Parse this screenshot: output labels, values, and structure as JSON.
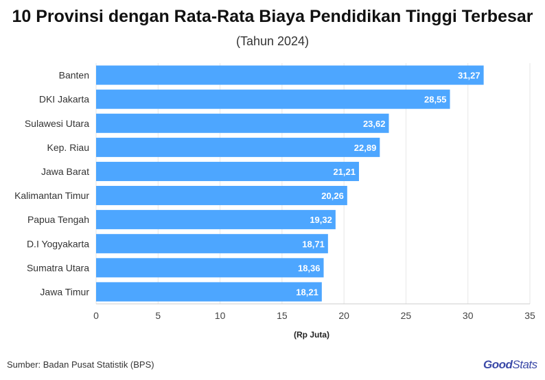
{
  "chart_data": {
    "type": "bar",
    "orientation": "horizontal",
    "title": "10 Provinsi dengan Rata-Rata Biaya Pendidikan Tinggi Terbesar",
    "subtitle": "(Tahun 2024)",
    "categories": [
      "Banten",
      "DKI Jakarta",
      "Sulawesi Utara",
      "Kep. Riau",
      "Jawa Barat",
      "Kalimantan Timur",
      "Papua Tengah",
      "D.I Yogyakarta",
      "Sumatra Utara",
      "Jawa Timur"
    ],
    "values": [
      31.27,
      28.55,
      23.62,
      22.89,
      21.21,
      20.26,
      19.32,
      18.71,
      18.36,
      18.21
    ],
    "value_labels": [
      "31,27",
      "28,55",
      "23,62",
      "22,89",
      "21,21",
      "20,26",
      "19,32",
      "18,71",
      "18,36",
      "18,21"
    ],
    "xlabel": "(Rp Juta)",
    "ylabel": "",
    "xlim": [
      0,
      35
    ],
    "xticks": [
      0,
      5,
      10,
      15,
      20,
      25,
      30,
      35
    ],
    "grid": true,
    "bar_color": "#4da6ff",
    "grid_color": "#e6e6e6"
  },
  "footer": {
    "source": "Sumber: Badan Pusat Statistik (BPS)",
    "brand_good": "Good",
    "brand_stats": "Stats"
  }
}
